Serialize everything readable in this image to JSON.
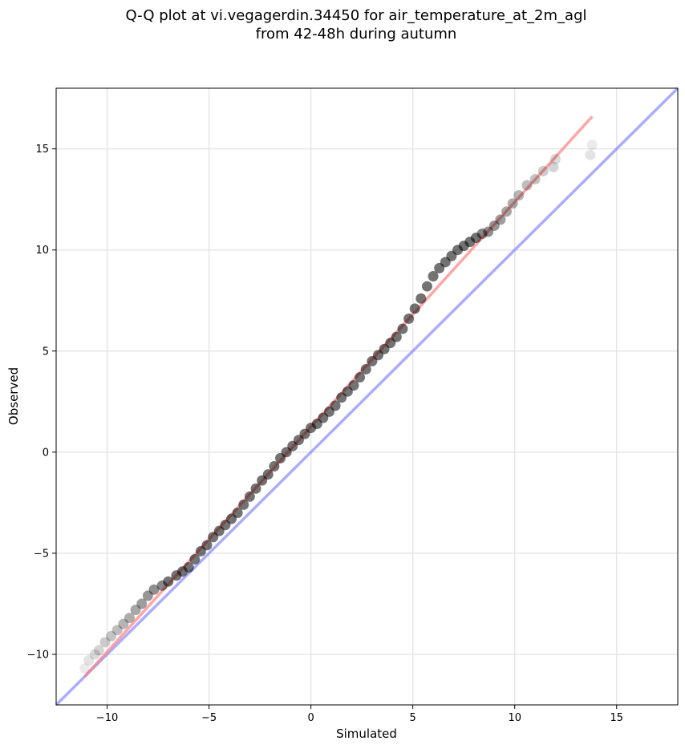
{
  "chart_data": {
    "type": "scatter",
    "title": "Q-Q plot at vi.vegagerdin.34450 for air_temperature_at_2m_agl",
    "subtitle": "from 42-48h during autumn",
    "xlabel": "Simulated",
    "ylabel": "Observed",
    "xlim": [
      -12.5,
      18
    ],
    "ylim": [
      -12.5,
      18
    ],
    "xticks": [
      -10,
      -5,
      0,
      5,
      10,
      15
    ],
    "yticks": [
      -10,
      -5,
      0,
      5,
      10,
      15
    ],
    "xtick_labels": [
      "−10",
      "−5",
      "0",
      "5",
      "10",
      "15"
    ],
    "ytick_labels": [
      "−10",
      "−5",
      "0",
      "5",
      "10",
      "15"
    ],
    "grid": true,
    "quantiles": {
      "x": [
        -11.1,
        -10.9,
        -10.6,
        -10.4,
        -10.1,
        -9.8,
        -9.5,
        -9.2,
        -8.9,
        -8.6,
        -8.3,
        -8.0,
        -7.7,
        -7.3,
        -7.0,
        -6.6,
        -6.3,
        -6.0,
        -5.7,
        -5.4,
        -5.1,
        -4.8,
        -4.5,
        -4.2,
        -3.9,
        -3.6,
        -3.3,
        -3.0,
        -2.7,
        -2.4,
        -2.1,
        -1.8,
        -1.5,
        -1.2,
        -0.9,
        -0.6,
        -0.3,
        0.0,
        0.3,
        0.6,
        0.9,
        1.2,
        1.5,
        1.8,
        2.1,
        2.4,
        2.7,
        3.0,
        3.3,
        3.6,
        3.9,
        4.2,
        4.5,
        4.8,
        5.1,
        5.4,
        5.7,
        6.0,
        6.3,
        6.6,
        6.9,
        7.2,
        7.5,
        7.8,
        8.1,
        8.4,
        8.7,
        9.0,
        9.3,
        9.6,
        9.9,
        10.2,
        10.6,
        11.0,
        11.4,
        11.9,
        12.0,
        13.7,
        13.8
      ],
      "y": [
        -10.7,
        -10.3,
        -10.0,
        -9.8,
        -9.4,
        -9.1,
        -8.8,
        -8.5,
        -8.2,
        -7.8,
        -7.5,
        -7.1,
        -6.8,
        -6.6,
        -6.4,
        -6.1,
        -5.9,
        -5.7,
        -5.3,
        -4.9,
        -4.6,
        -4.2,
        -3.9,
        -3.6,
        -3.3,
        -3.0,
        -2.6,
        -2.2,
        -1.8,
        -1.4,
        -1.1,
        -0.7,
        -0.3,
        0.0,
        0.3,
        0.6,
        0.9,
        1.2,
        1.4,
        1.7,
        2.0,
        2.3,
        2.7,
        3.0,
        3.3,
        3.7,
        4.1,
        4.5,
        4.8,
        5.1,
        5.4,
        5.7,
        6.1,
        6.6,
        7.1,
        7.6,
        8.2,
        8.7,
        9.1,
        9.4,
        9.7,
        10.0,
        10.2,
        10.4,
        10.6,
        10.8,
        10.9,
        11.2,
        11.5,
        11.9,
        12.3,
        12.7,
        13.2,
        13.5,
        13.9,
        14.1,
        14.5,
        14.7,
        15.2
      ]
    },
    "fit_line": {
      "color": "#ff7f7f",
      "x": [
        -11.1,
        13.8
      ],
      "y": [
        -11.1,
        16.6
      ]
    },
    "identity_line": {
      "color": "#7f7fff",
      "x": [
        -12.5,
        18
      ],
      "y": [
        -12.5,
        18
      ]
    },
    "point_color": "#000000"
  }
}
